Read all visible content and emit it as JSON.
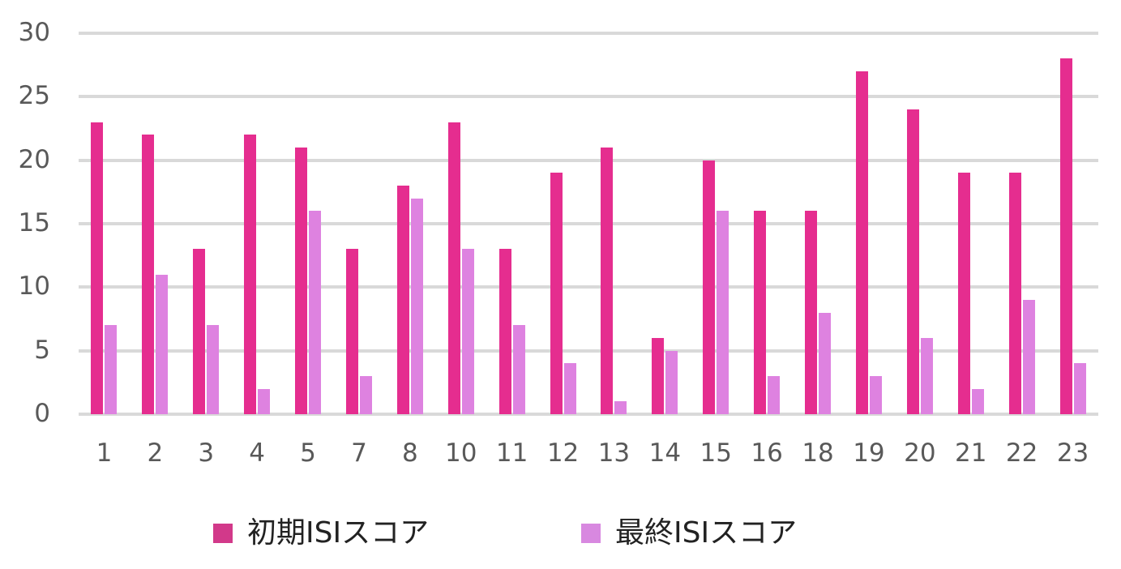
{
  "chart_data": {
    "type": "bar",
    "title": "",
    "xlabel": "",
    "ylabel": "",
    "ylim": [
      0,
      30
    ],
    "yticks": [
      "0",
      "5",
      "10",
      "15",
      "20",
      "25",
      "30"
    ],
    "grid": true,
    "legend_position": "bottom",
    "categories": [
      "1",
      "2",
      "3",
      "4",
      "5",
      "7",
      "8",
      "10",
      "11",
      "12",
      "13",
      "14",
      "15",
      "16",
      "18",
      "19",
      "20",
      "21",
      "22",
      "23"
    ],
    "series": [
      {
        "name": "初期ISIスコア",
        "color": "#e52d8f",
        "values": [
          23,
          22,
          13,
          22,
          21,
          13,
          18,
          23,
          13,
          19,
          21,
          6,
          20,
          16,
          16,
          27,
          24,
          19,
          19,
          28
        ]
      },
      {
        "name": "最終ISIスコア",
        "color": "#de82e0",
        "values": [
          7,
          11,
          7,
          2,
          16,
          3,
          17,
          13,
          7,
          4,
          1,
          5,
          16,
          3,
          8,
          3,
          6,
          2,
          9,
          4
        ]
      }
    ]
  },
  "legend": {
    "items": [
      {
        "label": "初期ISIスコア",
        "swatch_color": "#d2398a"
      },
      {
        "label": "最終ISIスコア",
        "swatch_color": "#d888e0"
      }
    ]
  }
}
